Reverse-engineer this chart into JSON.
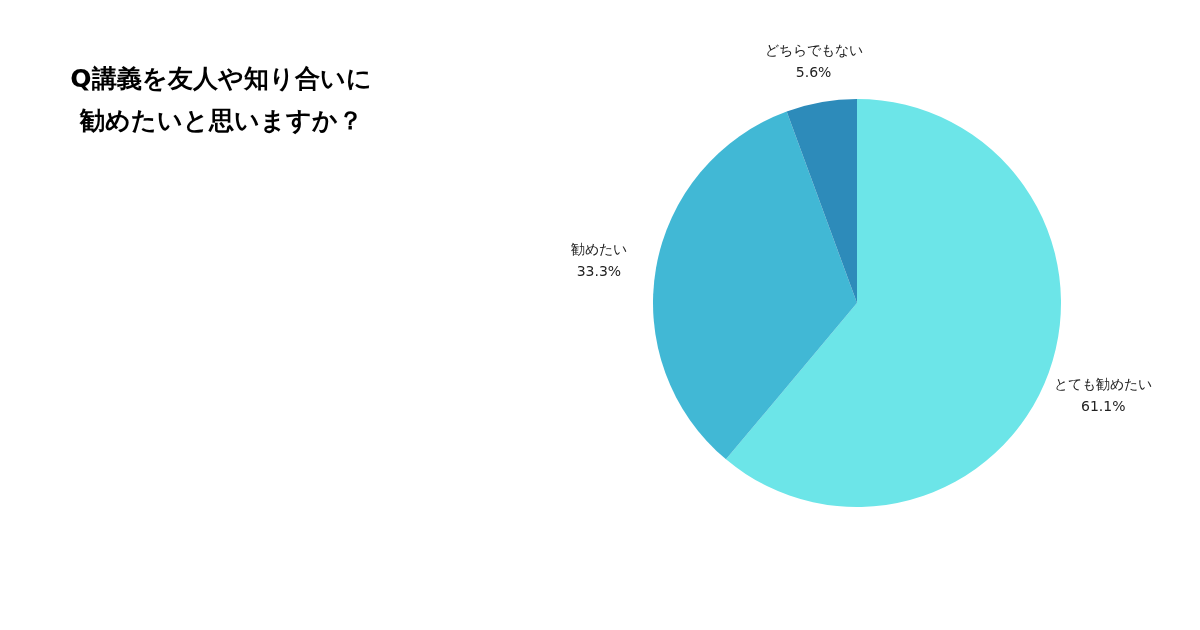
{
  "chart_data": {
    "type": "pie",
    "title": "Q講義を友人や知り合いに勧めたいと思いますか？",
    "categories": [
      "とても勧めたい",
      "勧めたい",
      "どちらでもない"
    ],
    "values": [
      61.1,
      33.3,
      5.6
    ],
    "colors": [
      "#6ce5e8",
      "#41b8d5",
      "#2d8bba"
    ],
    "value_labels": [
      "61.1%",
      "33.3%",
      "5.6%"
    ]
  }
}
